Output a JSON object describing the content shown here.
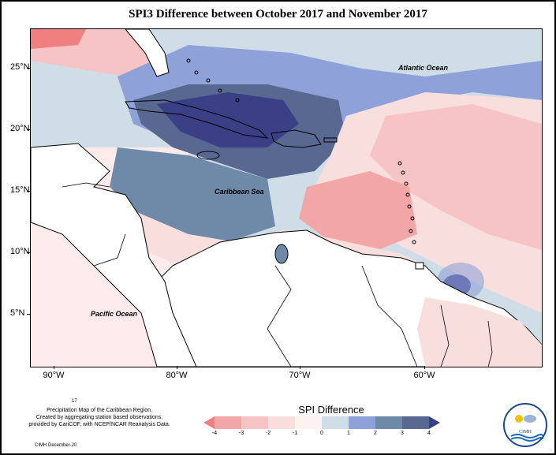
{
  "title": "SPI3 Difference between October 2017 and November 2017",
  "map": {
    "latitude_labels": [
      "25°N",
      "20°N",
      "15°N",
      "10°N",
      "5°N"
    ],
    "longitude_labels": [
      "90°W",
      "80°W",
      "70°W",
      "60°W"
    ],
    "ocean_labels": {
      "atlantic": "Atlantic Ocean",
      "caribbean": "Caribbean Sea",
      "pacific": "Pacific Ocean"
    },
    "colors": {
      "minus4": "#f08080",
      "minus3": "#f3a6a6",
      "minus2": "#f6c4c4",
      "minus1": "#f9dede",
      "zero": "#fdf2f2",
      "plus0": "#cfdde6",
      "plus1": "#8fa1d9",
      "plus2": "#6e8aa8",
      "plus3": "#586890",
      "plus4": "#3b3f86",
      "land": "#ffffff"
    }
  },
  "legend": {
    "title": "SPI Difference",
    "labels": [
      "-4",
      "-3",
      "-2",
      "-1",
      "0",
      "1",
      "2",
      "3",
      "4"
    ]
  },
  "caption": {
    "line0": "17",
    "line1": "Precipitation Map of the Caribbean Region.",
    "line2": "Created by aggregating station based observations,",
    "line3": "provided by CariCOF, with NCEP/NCAR Reanalysis Data.",
    "credit": "CIMH December-20"
  },
  "logo": {
    "text": "CIMH"
  }
}
